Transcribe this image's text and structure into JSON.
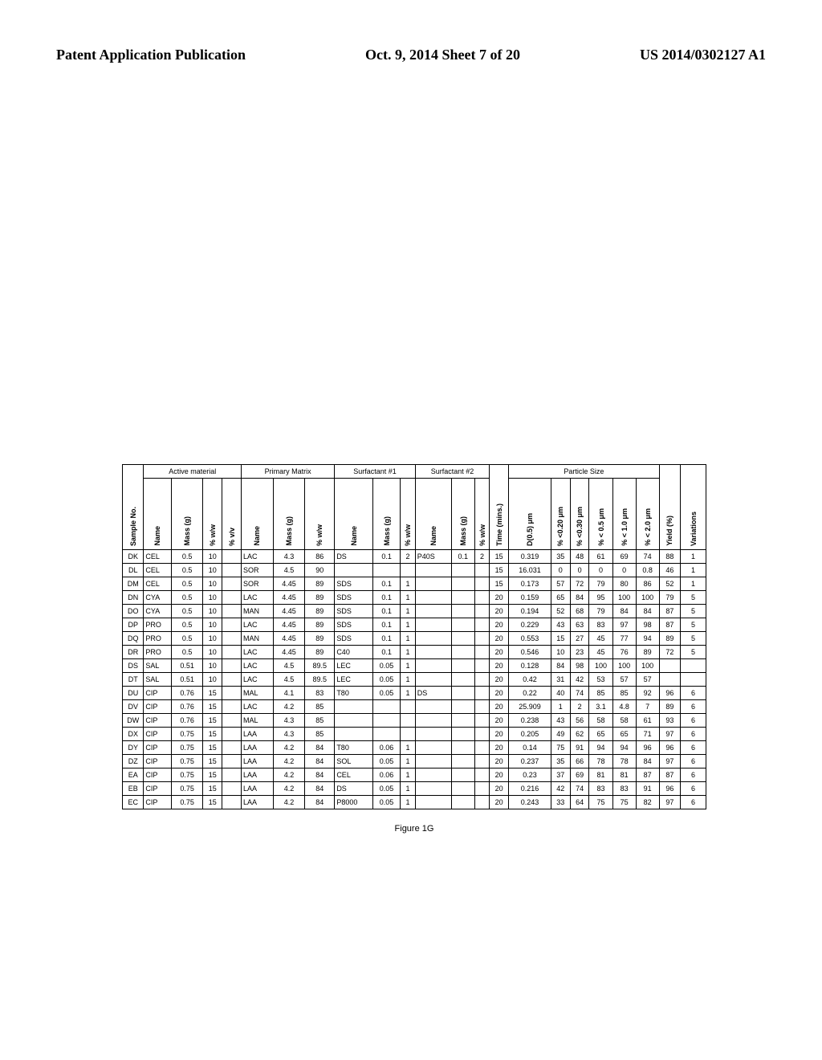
{
  "header": {
    "left": "Patent Application Publication",
    "mid": "Oct. 9, 2014  Sheet 7 of 20",
    "right": "US 2014/0302127 A1"
  },
  "caption": "Figure 1G",
  "groups": {
    "active": "Active material",
    "primary": "Primary Matrix",
    "surf1": "Surfactant #1",
    "surf2": "Surfactant #2",
    "particle": "Particle Size"
  },
  "cols": {
    "sample": "Sample No.",
    "name": "Name",
    "mass": "Mass (g)",
    "ww": "% w/w",
    "vv": "% v/v",
    "time": "Time (mins.)",
    "d05": "D(0.5) μm",
    "p02": "% <0.20 μm",
    "p03": "% <0.30 μm",
    "p05": "% < 0.5  μm",
    "p10": "% < 1.0  μm",
    "p20": "% < 2.0  μm",
    "yield": "Yield (%)",
    "var": "Variations"
  },
  "rows": [
    {
      "s": "DK",
      "n": "CEL",
      "m": "0.5",
      "w": "10",
      "v": "",
      "pn": "LAC",
      "pm": "4.3",
      "pw": "86",
      "s1n": "DS",
      "s1m": "0.1",
      "s1w": "2",
      "s2n": "P40S",
      "s2m": "0.1",
      "s2w": "2",
      "t": "15",
      "d": "0.319",
      "c1": "35",
      "c2": "48",
      "c3": "61",
      "c4": "69",
      "c5": "74",
      "y": "88",
      "var": "1"
    },
    {
      "s": "DL",
      "n": "CEL",
      "m": "0.5",
      "w": "10",
      "v": "",
      "pn": "SOR",
      "pm": "4.5",
      "pw": "90",
      "s1n": "",
      "s1m": "",
      "s1w": "",
      "s2n": "",
      "s2m": "",
      "s2w": "",
      "t": "15",
      "d": "16.031",
      "c1": "0",
      "c2": "0",
      "c3": "0",
      "c4": "0",
      "c5": "0.8",
      "y": "46",
      "var": "1"
    },
    {
      "s": "DM",
      "n": "CEL",
      "m": "0.5",
      "w": "10",
      "v": "",
      "pn": "SOR",
      "pm": "4.45",
      "pw": "89",
      "s1n": "SDS",
      "s1m": "0.1",
      "s1w": "1",
      "s2n": "",
      "s2m": "",
      "s2w": "",
      "t": "15",
      "d": "0.173",
      "c1": "57",
      "c2": "72",
      "c3": "79",
      "c4": "80",
      "c5": "86",
      "y": "52",
      "var": "1"
    },
    {
      "s": "DN",
      "n": "CYA",
      "m": "0.5",
      "w": "10",
      "v": "",
      "pn": "LAC",
      "pm": "4.45",
      "pw": "89",
      "s1n": "SDS",
      "s1m": "0.1",
      "s1w": "1",
      "s2n": "",
      "s2m": "",
      "s2w": "",
      "t": "20",
      "d": "0.159",
      "c1": "65",
      "c2": "84",
      "c3": "95",
      "c4": "100",
      "c5": "100",
      "y": "79",
      "var": "5"
    },
    {
      "s": "DO",
      "n": "CYA",
      "m": "0.5",
      "w": "10",
      "v": "",
      "pn": "MAN",
      "pm": "4.45",
      "pw": "89",
      "s1n": "SDS",
      "s1m": "0.1",
      "s1w": "1",
      "s2n": "",
      "s2m": "",
      "s2w": "",
      "t": "20",
      "d": "0.194",
      "c1": "52",
      "c2": "68",
      "c3": "79",
      "c4": "84",
      "c5": "84",
      "y": "87",
      "var": "5"
    },
    {
      "s": "DP",
      "n": "PRO",
      "m": "0.5",
      "w": "10",
      "v": "",
      "pn": "LAC",
      "pm": "4.45",
      "pw": "89",
      "s1n": "SDS",
      "s1m": "0.1",
      "s1w": "1",
      "s2n": "",
      "s2m": "",
      "s2w": "",
      "t": "20",
      "d": "0.229",
      "c1": "43",
      "c2": "63",
      "c3": "83",
      "c4": "97",
      "c5": "98",
      "y": "87",
      "var": "5"
    },
    {
      "s": "DQ",
      "n": "PRO",
      "m": "0.5",
      "w": "10",
      "v": "",
      "pn": "MAN",
      "pm": "4.45",
      "pw": "89",
      "s1n": "SDS",
      "s1m": "0.1",
      "s1w": "1",
      "s2n": "",
      "s2m": "",
      "s2w": "",
      "t": "20",
      "d": "0.553",
      "c1": "15",
      "c2": "27",
      "c3": "45",
      "c4": "77",
      "c5": "94",
      "y": "89",
      "var": "5"
    },
    {
      "s": "DR",
      "n": "PRO",
      "m": "0.5",
      "w": "10",
      "v": "",
      "pn": "LAC",
      "pm": "4.45",
      "pw": "89",
      "s1n": "C40",
      "s1m": "0.1",
      "s1w": "1",
      "s2n": "",
      "s2m": "",
      "s2w": "",
      "t": "20",
      "d": "0.546",
      "c1": "10",
      "c2": "23",
      "c3": "45",
      "c4": "76",
      "c5": "89",
      "y": "72",
      "var": "5"
    },
    {
      "s": "DS",
      "n": "SAL",
      "m": "0.51",
      "w": "10",
      "v": "",
      "pn": "LAC",
      "pm": "4.5",
      "pw": "89.5",
      "s1n": "LEC",
      "s1m": "0.05",
      "s1w": "1",
      "s2n": "",
      "s2m": "",
      "s2w": "",
      "t": "20",
      "d": "0.128",
      "c1": "84",
      "c2": "98",
      "c3": "100",
      "c4": "100",
      "c5": "100",
      "y": "",
      "var": ""
    },
    {
      "s": "DT",
      "n": "SAL",
      "m": "0.51",
      "w": "10",
      "v": "",
      "pn": "LAC",
      "pm": "4.5",
      "pw": "89.5",
      "s1n": "LEC",
      "s1m": "0.05",
      "s1w": "1",
      "s2n": "",
      "s2m": "",
      "s2w": "",
      "t": "20",
      "d": "0.42",
      "c1": "31",
      "c2": "42",
      "c3": "53",
      "c4": "57",
      "c5": "57",
      "y": "",
      "var": ""
    },
    {
      "s": "DU",
      "n": "CIP",
      "m": "0.76",
      "w": "15",
      "v": "",
      "pn": "MAL",
      "pm": "4.1",
      "pw": "83",
      "s1n": "T80",
      "s1m": "0.05",
      "s1w": "1",
      "s2n": "DS",
      "s2m": "",
      "s2w": "",
      "t": "20",
      "d": "0.22",
      "c1": "40",
      "c2": "74",
      "c3": "85",
      "c4": "85",
      "c5": "92",
      "y": "96",
      "var": "6"
    },
    {
      "s": "DV",
      "n": "CIP",
      "m": "0.76",
      "w": "15",
      "v": "",
      "pn": "LAC",
      "pm": "4.2",
      "pw": "85",
      "s1n": "",
      "s1m": "",
      "s1w": "",
      "s2n": "",
      "s2m": "",
      "s2w": "",
      "t": "20",
      "d": "25.909",
      "c1": "1",
      "c2": "2",
      "c3": "3.1",
      "c4": "4.8",
      "c5": "7",
      "y": "89",
      "var": "6"
    },
    {
      "s": "DW",
      "n": "CIP",
      "m": "0.76",
      "w": "15",
      "v": "",
      "pn": "MAL",
      "pm": "4.3",
      "pw": "85",
      "s1n": "",
      "s1m": "",
      "s1w": "",
      "s2n": "",
      "s2m": "",
      "s2w": "",
      "t": "20",
      "d": "0.238",
      "c1": "43",
      "c2": "56",
      "c3": "58",
      "c4": "58",
      "c5": "61",
      "y": "93",
      "var": "6"
    },
    {
      "s": "DX",
      "n": "CIP",
      "m": "0.75",
      "w": "15",
      "v": "",
      "pn": "LAA",
      "pm": "4.3",
      "pw": "85",
      "s1n": "",
      "s1m": "",
      "s1w": "",
      "s2n": "",
      "s2m": "",
      "s2w": "",
      "t": "20",
      "d": "0.205",
      "c1": "49",
      "c2": "62",
      "c3": "65",
      "c4": "65",
      "c5": "71",
      "y": "97",
      "var": "6"
    },
    {
      "s": "DY",
      "n": "CIP",
      "m": "0.75",
      "w": "15",
      "v": "",
      "pn": "LAA",
      "pm": "4.2",
      "pw": "84",
      "s1n": "T80",
      "s1m": "0.06",
      "s1w": "1",
      "s2n": "",
      "s2m": "",
      "s2w": "",
      "t": "20",
      "d": "0.14",
      "c1": "75",
      "c2": "91",
      "c3": "94",
      "c4": "94",
      "c5": "96",
      "y": "96",
      "var": "6"
    },
    {
      "s": "DZ",
      "n": "CIP",
      "m": "0.75",
      "w": "15",
      "v": "",
      "pn": "LAA",
      "pm": "4.2",
      "pw": "84",
      "s1n": "SOL",
      "s1m": "0.05",
      "s1w": "1",
      "s2n": "",
      "s2m": "",
      "s2w": "",
      "t": "20",
      "d": "0.237",
      "c1": "35",
      "c2": "66",
      "c3": "78",
      "c4": "78",
      "c5": "84",
      "y": "97",
      "var": "6"
    },
    {
      "s": "EA",
      "n": "CIP",
      "m": "0.75",
      "w": "15",
      "v": "",
      "pn": "LAA",
      "pm": "4.2",
      "pw": "84",
      "s1n": "CEL",
      "s1m": "0.06",
      "s1w": "1",
      "s2n": "",
      "s2m": "",
      "s2w": "",
      "t": "20",
      "d": "0.23",
      "c1": "37",
      "c2": "69",
      "c3": "81",
      "c4": "81",
      "c5": "87",
      "y": "87",
      "var": "6"
    },
    {
      "s": "EB",
      "n": "CIP",
      "m": "0.75",
      "w": "15",
      "v": "",
      "pn": "LAA",
      "pm": "4.2",
      "pw": "84",
      "s1n": "DS",
      "s1m": "0.05",
      "s1w": "1",
      "s2n": "",
      "s2m": "",
      "s2w": "",
      "t": "20",
      "d": "0.216",
      "c1": "42",
      "c2": "74",
      "c3": "83",
      "c4": "83",
      "c5": "91",
      "y": "96",
      "var": "6"
    },
    {
      "s": "EC",
      "n": "CIP",
      "m": "0.75",
      "w": "15",
      "v": "",
      "pn": "LAA",
      "pm": "4.2",
      "pw": "84",
      "s1n": "P8000",
      "s1m": "0.05",
      "s1w": "1",
      "s2n": "",
      "s2m": "",
      "s2w": "",
      "t": "20",
      "d": "0.243",
      "c1": "33",
      "c2": "64",
      "c3": "75",
      "c4": "75",
      "c5": "82",
      "y": "97",
      "var": "6"
    }
  ]
}
